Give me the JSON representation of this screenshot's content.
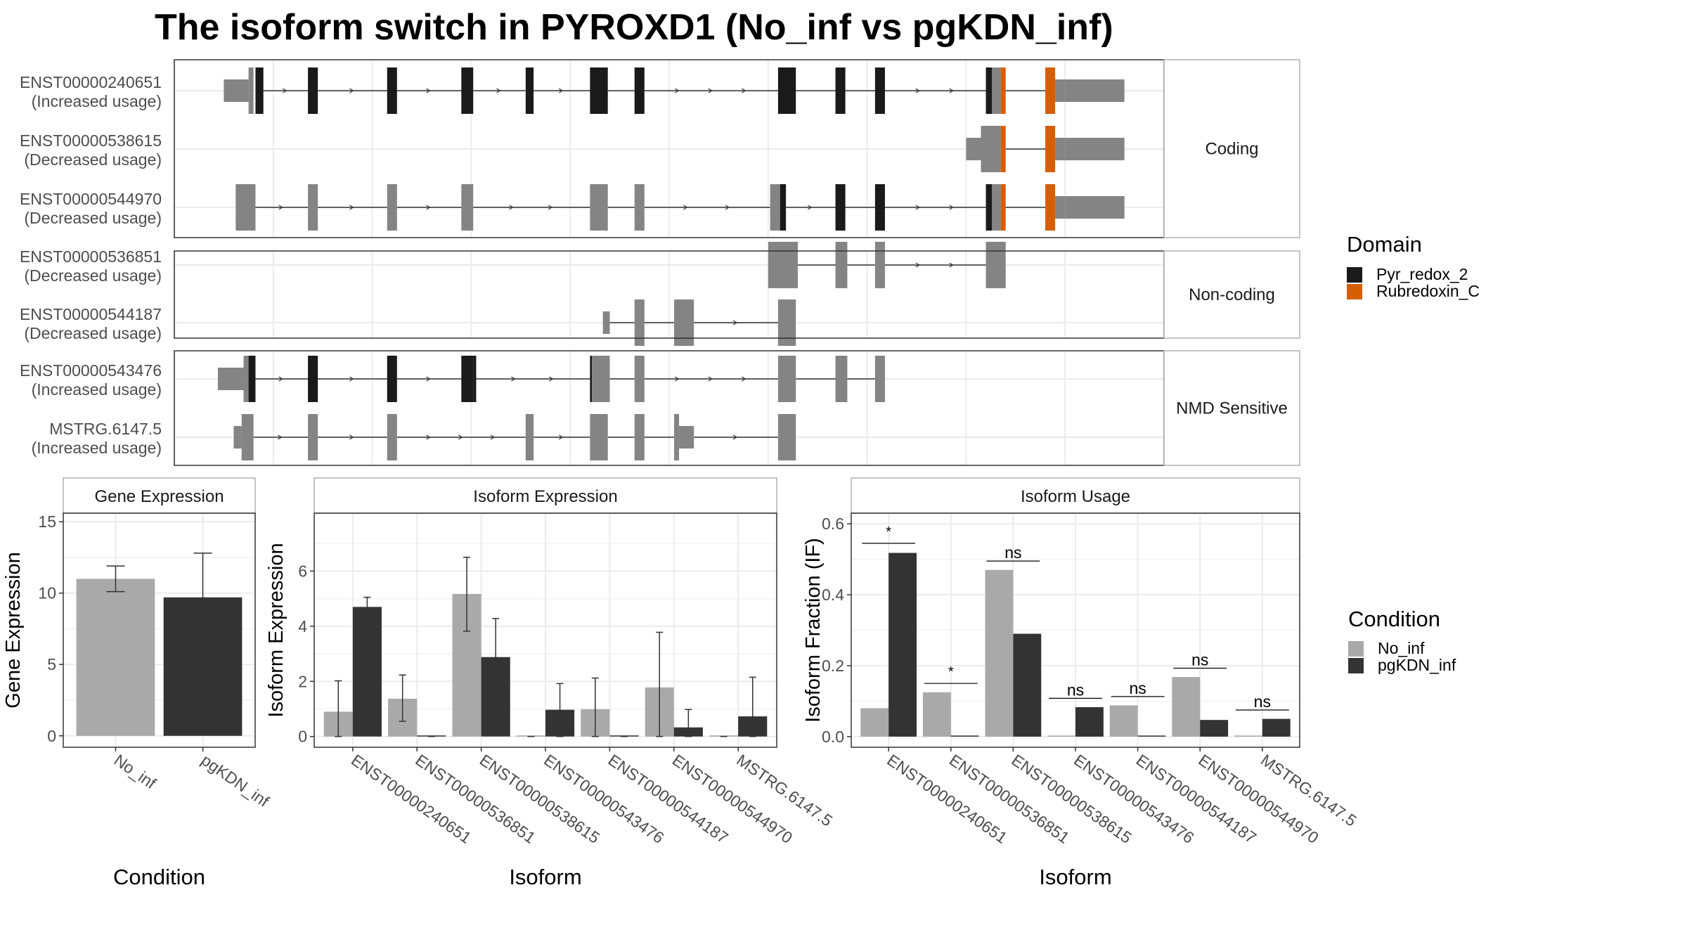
{
  "title": "The isoform switch in PYROXD1 (No_inf vs pgKDN_inf)",
  "colors": {
    "no_inf": "#a9a9a9",
    "pgkdn_inf": "#333333",
    "exon": "#848484",
    "pyr_redox_2": "#1a1a1a",
    "rubredoxin_c": "#d55e00",
    "panel_border": "#333333",
    "strip_border": "#b0b0b0",
    "grid": "#ebebeb",
    "intron": "#333333"
  },
  "structure": {
    "x_domain": [
      0,
      1000
    ],
    "groups": [
      {
        "name": "Coding",
        "isoforms": [
          {
            "id": "ENST00000240651",
            "usage": "(Increased usage)",
            "exons": [
              [
                50,
                75,
                1
              ],
              [
                75,
                80,
                2
              ],
              [
                82,
                90,
                2
              ],
              [
                135,
                145,
                2
              ],
              [
                215,
                225,
                2
              ],
              [
                290,
                302,
                2
              ],
              [
                355,
                363,
                2
              ],
              [
                420,
                438,
                2
              ],
              [
                465,
                475,
                2
              ],
              [
                610,
                628,
                2
              ],
              [
                668,
                678,
                2
              ],
              [
                708,
                718,
                2
              ],
              [
                820,
                826,
                2
              ],
              [
                826,
                835,
                2
              ],
              [
                835,
                840,
                3
              ],
              [
                880,
                890,
                3
              ],
              [
                890,
                900,
                1
              ],
              [
                900,
                960,
                1
              ]
            ]
          },
          {
            "id": "ENST00000538615",
            "usage": "(Decreased usage)",
            "exons": [
              [
                800,
                815,
                1
              ],
              [
                815,
                835,
                2
              ],
              [
                835,
                840,
                3
              ],
              [
                880,
                890,
                3
              ],
              [
                890,
                900,
                1
              ],
              [
                900,
                960,
                1
              ]
            ]
          },
          {
            "id": "ENST00000544970",
            "usage": "(Decreased usage)",
            "exons": [
              [
                62,
                82,
                2
              ],
              [
                135,
                145,
                2
              ],
              [
                215,
                225,
                2
              ],
              [
                290,
                302,
                2
              ],
              [
                420,
                438,
                2
              ],
              [
                465,
                475,
                2
              ],
              [
                602,
                612,
                2
              ],
              [
                612,
                618,
                2
              ],
              [
                668,
                678,
                2
              ],
              [
                708,
                718,
                2
              ],
              [
                820,
                826,
                2
              ],
              [
                826,
                835,
                2
              ],
              [
                835,
                840,
                3
              ],
              [
                880,
                890,
                3
              ],
              [
                890,
                900,
                1
              ],
              [
                900,
                960,
                1
              ]
            ]
          }
        ]
      },
      {
        "name": "Non-coding",
        "isoforms": [
          {
            "id": "ENST00000536851",
            "usage": "(Decreased usage)",
            "exons": [
              [
                600,
                630,
                2
              ],
              [
                668,
                680,
                2
              ],
              [
                708,
                718,
                2
              ],
              [
                820,
                840,
                2
              ]
            ]
          },
          {
            "id": "ENST00000544187",
            "usage": "(Decreased usage)",
            "exons": [
              [
                433,
                440,
                1
              ],
              [
                465,
                475,
                2
              ],
              [
                505,
                525,
                2
              ],
              [
                610,
                628,
                2
              ]
            ]
          }
        ]
      },
      {
        "name": "NMD Sensitive",
        "isoforms": [
          {
            "id": "ENST00000543476",
            "usage": "(Increased usage)",
            "exons": [
              [
                44,
                70,
                1
              ],
              [
                70,
                75,
                2
              ],
              [
                75,
                82,
                2
              ],
              [
                135,
                145,
                2
              ],
              [
                215,
                225,
                2
              ],
              [
                290,
                302,
                2
              ],
              [
                302,
                305,
                2
              ],
              [
                420,
                422,
                2
              ],
              [
                422,
                440,
                2
              ],
              [
                465,
                475,
                2
              ],
              [
                610,
                628,
                2
              ],
              [
                668,
                680,
                2
              ],
              [
                708,
                718,
                2
              ]
            ]
          },
          {
            "id": "MSTRG.6147.5",
            "usage": "(Increased usage)",
            "exons": [
              [
                60,
                68,
                1
              ],
              [
                68,
                80,
                2
              ],
              [
                135,
                145,
                2
              ],
              [
                215,
                225,
                2
              ],
              [
                355,
                363,
                2
              ],
              [
                420,
                438,
                2
              ],
              [
                465,
                475,
                2
              ],
              [
                505,
                510,
                2
              ],
              [
                510,
                525,
                1
              ],
              [
                610,
                628,
                2
              ]
            ]
          }
        ]
      }
    ],
    "legend": {
      "title": "Domain",
      "items": [
        "Pyr_redox_2",
        "Rubredoxin_C"
      ]
    }
  },
  "chart_data": [
    {
      "type": "bar",
      "title": "Gene Expression",
      "xlabel": "Condition",
      "ylabel": "Gene Expression",
      "ylim": [
        -0.8,
        15.6
      ],
      "yticks": [
        0,
        5,
        10,
        15
      ],
      "categories": [
        "No_inf",
        "pgKDN_inf"
      ],
      "values": [
        11.0,
        9.7
      ],
      "errors": [
        [
          10.1,
          11.9
        ],
        [
          6.7,
          12.8
        ]
      ]
    },
    {
      "type": "bar",
      "title": "Isoform Expression",
      "xlabel": "Isoform",
      "ylabel": "Isoform Expression",
      "ylim": [
        -0.39,
        8.1
      ],
      "yticks": [
        0,
        2,
        4,
        6
      ],
      "categories": [
        "ENST00000240651",
        "ENST00000536851",
        "ENST00000538615",
        "ENST00000543476",
        "ENST00000544187",
        "ENST00000544970",
        "MSTRG.6147.5"
      ],
      "series": [
        {
          "name": "No_inf",
          "values": [
            0.9,
            1.37,
            5.17,
            0,
            0.99,
            1.78,
            0
          ],
          "errors": [
            [
              0,
              2.02
            ],
            [
              0.55,
              2.23
            ],
            [
              3.82,
              6.5
            ],
            [
              0,
              0
            ],
            [
              0,
              2.12
            ],
            [
              0,
              3.78
            ],
            [
              0,
              0
            ]
          ]
        },
        {
          "name": "pgKDN_inf",
          "values": [
            4.7,
            0,
            2.88,
            0.97,
            0,
            0.33,
            0.73
          ],
          "errors": [
            [
              4.35,
              5.05
            ],
            [
              0,
              0
            ],
            [
              1.47,
              4.28
            ],
            [
              0,
              1.92
            ],
            [
              0,
              0
            ],
            [
              0,
              0.98
            ],
            [
              0,
              2.15
            ]
          ]
        }
      ]
    },
    {
      "type": "bar",
      "title": "Isoform Usage",
      "xlabel": "Isoform",
      "ylabel": "Isoform Fraction (IF)",
      "ylim": [
        -0.03,
        0.63
      ],
      "yticks": [
        0.0,
        0.2,
        0.4,
        0.6
      ],
      "categories": [
        "ENST00000240651",
        "ENST00000536851",
        "ENST00000538615",
        "ENST00000543476",
        "ENST00000544187",
        "ENST00000544970",
        "MSTRG.6147.5"
      ],
      "series": [
        {
          "name": "No_inf",
          "values": [
            0.08,
            0.125,
            0.47,
            0,
            0.088,
            0.168,
            0
          ]
        },
        {
          "name": "pgKDN_inf",
          "values": [
            0.518,
            0,
            0.29,
            0.083,
            0,
            0.047,
            0.05
          ]
        }
      ],
      "significance": [
        {
          "label": "*",
          "y": 0.545
        },
        {
          "label": "*",
          "y": 0.15
        },
        {
          "label": "ns",
          "y": 0.495
        },
        {
          "label": "ns",
          "y": 0.108
        },
        {
          "label": "ns",
          "y": 0.113
        },
        {
          "label": "ns",
          "y": 0.193
        },
        {
          "label": "ns",
          "y": 0.075
        }
      ]
    }
  ],
  "condition_legend": {
    "title": "Condition",
    "items": [
      "No_inf",
      "pgKDN_inf"
    ]
  }
}
